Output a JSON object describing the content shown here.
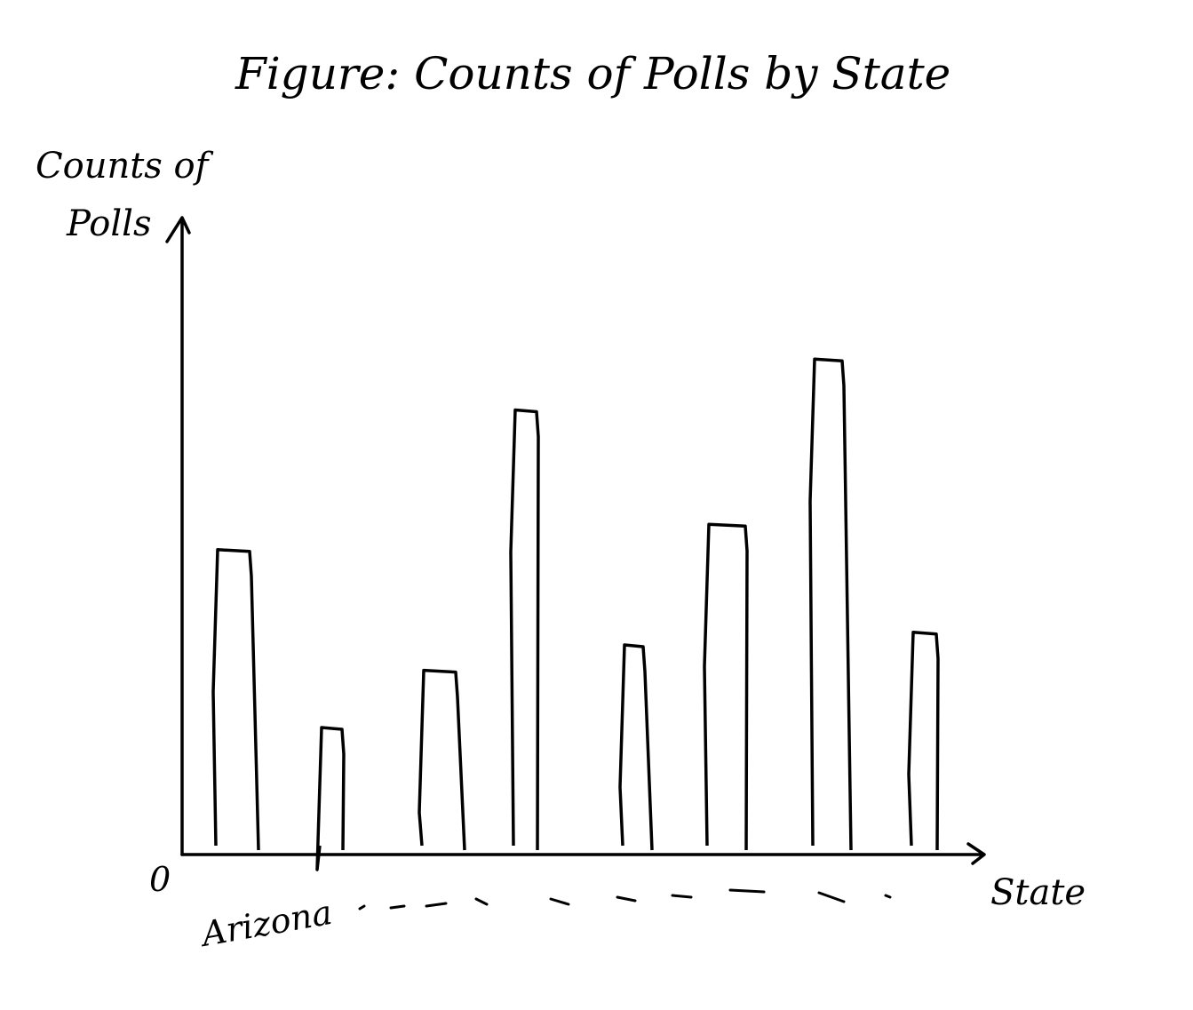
{
  "chart_data": {
    "type": "bar",
    "title": "Figure: Counts of Polls by State",
    "xlabel": "State",
    "ylabel": "Counts of Polls",
    "origin_label": "0",
    "categories": [
      "Arizona",
      "",
      "",
      "",
      "",
      "",
      "",
      "",
      ""
    ],
    "first_tick_label": "Arizona",
    "values": [
      48,
      20,
      29,
      70,
      33,
      52,
      78,
      35,
      0
    ],
    "bars_drawn": 8,
    "ylim": [
      0,
      100
    ],
    "grid": false,
    "legend": "none",
    "style": "hand-drawn sketch",
    "colors": {
      "stroke": "#000000",
      "background": "#ffffff"
    }
  }
}
